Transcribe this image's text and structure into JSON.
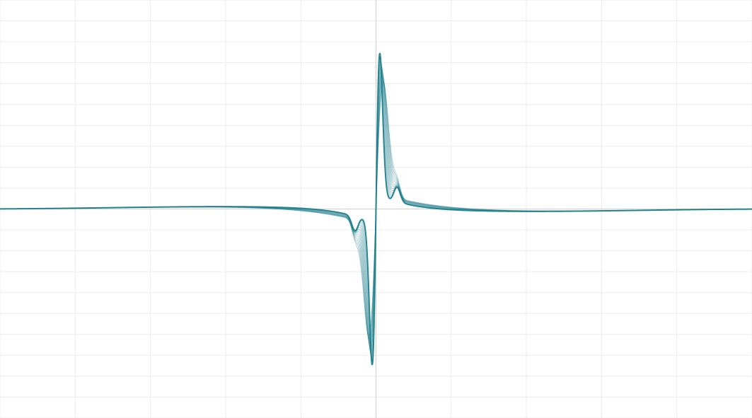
{
  "chart_data": {
    "type": "line",
    "title": "",
    "xlabel": "",
    "ylabel": "",
    "xlim": [
      -5,
      5
    ],
    "ylim": [
      -5,
      5
    ],
    "grid": true,
    "legend": "none",
    "series_count": 14,
    "colors": {
      "curve": "#1f7f8c",
      "grid": "#ececec",
      "axis": "#cfcfcf",
      "background": "#ffffff"
    }
  }
}
